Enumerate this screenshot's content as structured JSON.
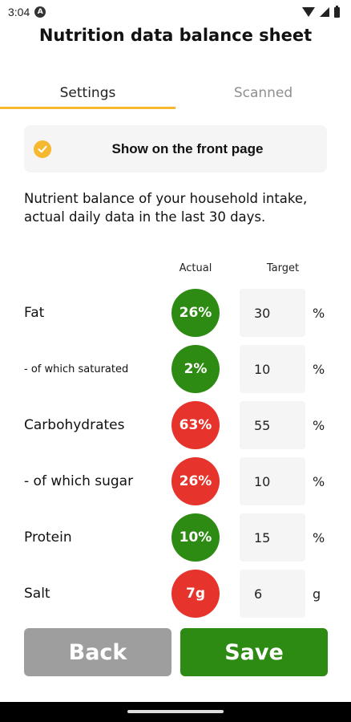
{
  "status_bar": {
    "time": "3:04",
    "app_icon": "A",
    "icons": [
      "wifi-icon",
      "signal-icon",
      "battery-icon"
    ]
  },
  "header": {
    "title": "Nutrition data balance sheet"
  },
  "tabs": [
    {
      "label": "Settings",
      "active": true
    },
    {
      "label": "Scanned",
      "active": false
    }
  ],
  "front_page": {
    "label": "Show on the front page",
    "checked": true,
    "icon": "check-circle-icon",
    "accent": "#f5b82e"
  },
  "description": "Nutrient balance of your household intake, actual daily data in the last 30 days.",
  "columns": {
    "actual": "Actual",
    "target": "Target"
  },
  "nutrients": [
    {
      "label": "Fat",
      "actual": "26%",
      "status": "green",
      "target": "30",
      "unit": "%"
    },
    {
      "label": "- of which saturated",
      "actual": "2%",
      "status": "green",
      "target": "10",
      "unit": "%"
    },
    {
      "label": "Carbohydrates",
      "actual": "63%",
      "status": "red",
      "target": "55",
      "unit": "%"
    },
    {
      "label": "- of which sugar",
      "actual": "26%",
      "status": "red",
      "target": "10",
      "unit": "%"
    },
    {
      "label": "Protein",
      "actual": "10%",
      "status": "green",
      "target": "15",
      "unit": "%"
    },
    {
      "label": "Salt",
      "actual": "7g",
      "status": "red",
      "target": "6",
      "unit": "g"
    }
  ],
  "colors": {
    "green": "#2d8a12",
    "red": "#e6332b",
    "back": "#9e9e9e",
    "accent": "#f5b82e"
  },
  "buttons": {
    "back": "Back",
    "save": "Save"
  }
}
